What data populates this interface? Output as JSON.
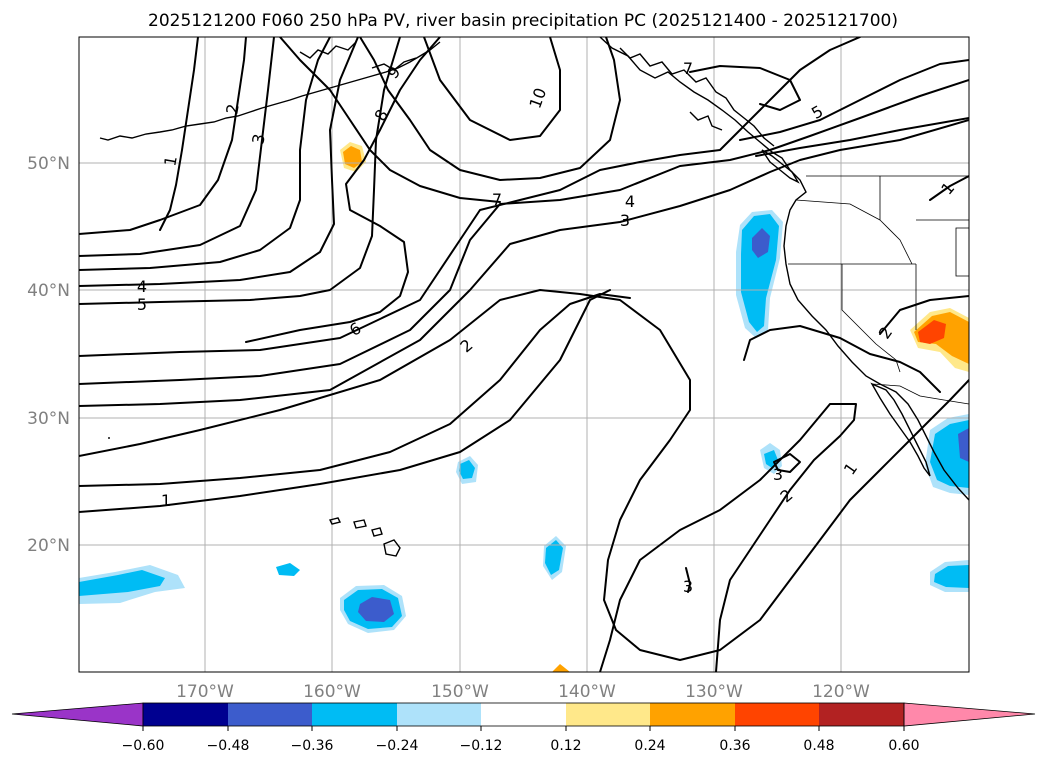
{
  "title": "2025121200 F060 250 hPa PV, river basin precipitation PC (2025121400 - 2025121700)",
  "lat_labels": [
    "50°N",
    "40°N",
    "30°N",
    "20°N"
  ],
  "lon_labels": [
    "170°W",
    "160°W",
    "150°W",
    "140°W",
    "130°W",
    "120°W"
  ],
  "contour_labels": [
    "1",
    "2",
    "3",
    "4",
    "5",
    "6",
    "7",
    "8",
    "9",
    "10"
  ],
  "colorbar": {
    "ticks": [
      "−0.60",
      "−0.48",
      "−0.36",
      "−0.24",
      "−0.12",
      "0.12",
      "0.24",
      "0.36",
      "0.48",
      "0.60"
    ],
    "colors": [
      "#9a34c8",
      "#000090",
      "#3c5ccc",
      "#00bcf4",
      "#aee2fa",
      "#ffffff",
      "#ffe88a",
      "#ffa200",
      "#ff4400",
      "#b22222",
      "#ff88aa"
    ]
  },
  "colors": {
    "dark_blue": "#3c5ccc",
    "blue": "#00bcf4",
    "light_blue": "#aee2fa",
    "yellow": "#ffe88a",
    "orange": "#ffa200",
    "red": "#ff4400"
  }
}
